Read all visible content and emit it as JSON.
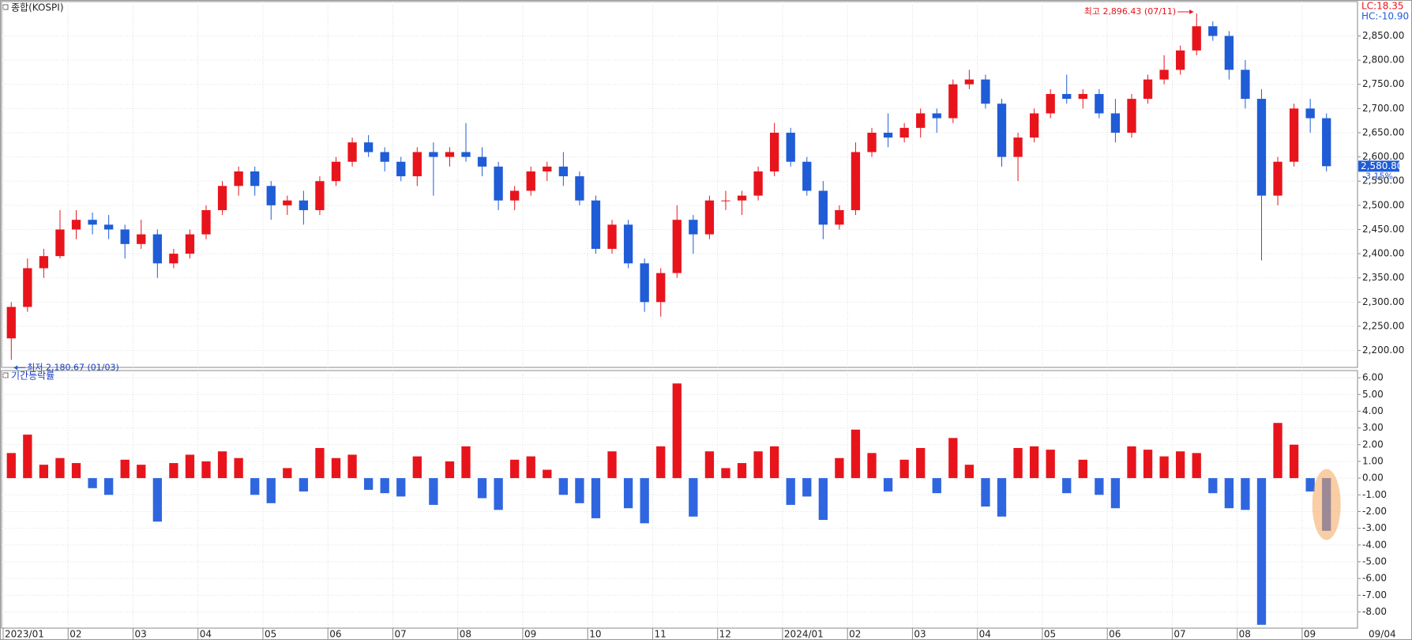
{
  "chart_data": [
    {
      "type": "candlestick",
      "title": "종합(KOSPI)",
      "open": [
        2225,
        2290,
        2370,
        2395,
        2450,
        2470,
        2460,
        2450,
        2420,
        2440,
        2380,
        2400,
        2440,
        2490,
        2540,
        2570,
        2540,
        2500,
        2510,
        2490,
        2550,
        2590,
        2630,
        2610,
        2590,
        2560,
        2610,
        2600,
        2610,
        2600,
        2580,
        2510,
        2530,
        2570,
        2580,
        2560,
        2510,
        2410,
        2460,
        2380,
        2300,
        2360,
        2470,
        2440,
        2510,
        2510,
        2520,
        2570,
        2650,
        2590,
        2530,
        2460,
        2490,
        2610,
        2650,
        2640,
        2660,
        2690,
        2680,
        2750,
        2760,
        2710,
        2600,
        2640,
        2690,
        2730,
        2720,
        2730,
        2690,
        2650,
        2720,
        2760,
        2780,
        2820,
        2870,
        2850,
        2780,
        2720,
        2520,
        2590,
        2700,
        2680
      ],
      "high": [
        2300,
        2390,
        2410,
        2490,
        2490,
        2485,
        2480,
        2460,
        2470,
        2450,
        2410,
        2450,
        2500,
        2550,
        2580,
        2580,
        2550,
        2520,
        2530,
        2560,
        2600,
        2640,
        2645,
        2620,
        2600,
        2620,
        2630,
        2620,
        2670,
        2620,
        2590,
        2540,
        2580,
        2590,
        2610,
        2570,
        2520,
        2470,
        2470,
        2390,
        2370,
        2500,
        2480,
        2520,
        2530,
        2530,
        2580,
        2670,
        2660,
        2600,
        2550,
        2500,
        2630,
        2660,
        2690,
        2670,
        2700,
        2700,
        2760,
        2780,
        2770,
        2720,
        2650,
        2700,
        2740,
        2770,
        2740,
        2740,
        2720,
        2730,
        2770,
        2810,
        2830,
        2896.43,
        2880,
        2860,
        2800,
        2740,
        2600,
        2710,
        2720,
        2690
      ],
      "low": [
        2180.67,
        2280,
        2350,
        2390,
        2430,
        2440,
        2430,
        2390,
        2410,
        2350,
        2370,
        2390,
        2430,
        2480,
        2520,
        2520,
        2470,
        2480,
        2460,
        2480,
        2540,
        2580,
        2600,
        2570,
        2550,
        2540,
        2520,
        2580,
        2590,
        2560,
        2490,
        2490,
        2520,
        2550,
        2540,
        2500,
        2400,
        2400,
        2370,
        2280,
        2270,
        2350,
        2400,
        2430,
        2490,
        2480,
        2510,
        2560,
        2580,
        2520,
        2430,
        2450,
        2480,
        2600,
        2620,
        2630,
        2640,
        2650,
        2670,
        2740,
        2700,
        2580,
        2550,
        2630,
        2680,
        2710,
        2700,
        2680,
        2630,
        2640,
        2710,
        2750,
        2770,
        2810,
        2840,
        2760,
        2700,
        2386,
        2500,
        2580,
        2650,
        2570
      ],
      "close": [
        2290,
        2370,
        2395,
        2450,
        2470,
        2460,
        2450,
        2420,
        2440,
        2380,
        2400,
        2440,
        2490,
        2540,
        2570,
        2540,
        2500,
        2510,
        2490,
        2550,
        2590,
        2630,
        2610,
        2590,
        2560,
        2610,
        2600,
        2610,
        2600,
        2580,
        2510,
        2530,
        2570,
        2580,
        2560,
        2510,
        2410,
        2460,
        2380,
        2300,
        2360,
        2470,
        2440,
        2510,
        2510,
        2520,
        2570,
        2650,
        2590,
        2530,
        2460,
        2490,
        2610,
        2650,
        2640,
        2660,
        2690,
        2680,
        2750,
        2760,
        2710,
        2600,
        2640,
        2690,
        2730,
        2720,
        2730,
        2690,
        2650,
        2720,
        2760,
        2780,
        2820,
        2870,
        2850,
        2780,
        2720,
        2520,
        2590,
        2700,
        2680,
        2580.8
      ],
      "up_color": "#e8141c",
      "down_color": "#1f5cd6",
      "ylim": [
        2165,
        2921
      ],
      "yticks": [
        {
          "value": 2200,
          "label": "2,200.00"
        },
        {
          "value": 2250,
          "label": "2,250.00"
        },
        {
          "value": 2300,
          "label": "2,300.00"
        },
        {
          "value": 2350,
          "label": "2,350.00"
        },
        {
          "value": 2400,
          "label": "2,400.00"
        },
        {
          "value": 2450,
          "label": "2,450.00"
        },
        {
          "value": 2500,
          "label": "2,500.00"
        },
        {
          "value": 2550,
          "label": "2,550.00"
        },
        {
          "value": 2600,
          "label": "2,600.00"
        },
        {
          "value": 2650,
          "label": "2,650.00"
        },
        {
          "value": 2700,
          "label": "2,700.00"
        },
        {
          "value": 2750,
          "label": "2,750.00"
        },
        {
          "value": 2800,
          "label": "2,800.00"
        },
        {
          "value": 2850,
          "label": "2,850.00"
        }
      ],
      "high_annotation": "최고 2,896.43 (07/11)",
      "low_annotation": "최저 2,180.67 (01/03)",
      "lc_label": "LC:18.35",
      "hc_label": "HC:-10.90",
      "last_price": {
        "value": 2580.8,
        "label": "2,580.80"
      },
      "last_change_label": "-3.15%",
      "grid": true
    },
    {
      "type": "bar",
      "title": "기간등락률",
      "categories": [
        "2023/01",
        null,
        null,
        null,
        "02",
        null,
        null,
        null,
        "03",
        null,
        null,
        null,
        "04",
        null,
        null,
        null,
        "05",
        null,
        null,
        null,
        "06",
        null,
        null,
        null,
        "07",
        null,
        null,
        null,
        "08",
        null,
        null,
        null,
        "09",
        null,
        null,
        null,
        "10",
        null,
        null,
        null,
        "11",
        null,
        null,
        null,
        "12",
        null,
        null,
        null,
        "2024/01",
        null,
        null,
        null,
        "02",
        null,
        null,
        null,
        "03",
        null,
        null,
        null,
        "04",
        null,
        null,
        null,
        "05",
        null,
        null,
        null,
        "06",
        null,
        null,
        null,
        "07",
        null,
        null,
        null,
        "08",
        null,
        null,
        null,
        "09",
        null
      ],
      "end_label": "09/04",
      "values": [
        1.5,
        2.6,
        0.8,
        1.2,
        0.9,
        -0.6,
        -1.0,
        1.1,
        0.8,
        -2.6,
        0.9,
        1.4,
        1.0,
        1.6,
        1.2,
        -1.0,
        -1.5,
        0.6,
        -0.8,
        1.8,
        1.2,
        1.4,
        -0.7,
        -0.9,
        -1.1,
        1.3,
        -1.6,
        1.0,
        1.9,
        -1.2,
        -1.9,
        1.1,
        1.3,
        0.5,
        -1.0,
        -1.5,
        -2.4,
        1.6,
        -1.8,
        -2.7,
        1.9,
        5.66,
        -2.3,
        1.6,
        0.6,
        0.9,
        1.6,
        1.9,
        -1.6,
        -1.1,
        -2.5,
        1.2,
        2.9,
        1.5,
        -0.8,
        1.1,
        1.8,
        -0.9,
        2.4,
        0.8,
        -1.7,
        -2.3,
        1.8,
        1.9,
        1.7,
        -0.9,
        1.1,
        -1.0,
        -1.8,
        1.9,
        1.7,
        1.3,
        1.6,
        1.5,
        -0.9,
        -1.8,
        -1.9,
        -8.77,
        3.3,
        2.0,
        -0.8,
        -3.15
      ],
      "up_color": "#e8141c",
      "down_color": "#2f66e0",
      "ylim": [
        -8.97,
        6.43
      ],
      "yticks": [
        {
          "value": 6,
          "label": "6.00"
        },
        {
          "value": 5,
          "label": "5.00"
        },
        {
          "value": 4,
          "label": "4.00"
        },
        {
          "value": 3,
          "label": "3.00"
        },
        {
          "value": 2,
          "label": "2.00"
        },
        {
          "value": 1,
          "label": "1.00"
        },
        {
          "value": 0,
          "label": "0.00"
        },
        {
          "value": -1,
          "label": "-1.00"
        },
        {
          "value": -2,
          "label": "-2.00"
        },
        {
          "value": -3,
          "label": "-3.00"
        },
        {
          "value": -4,
          "label": "-4.00"
        },
        {
          "value": -5,
          "label": "-5.00"
        },
        {
          "value": -6,
          "label": "-6.00"
        },
        {
          "value": -7,
          "label": "-7.00"
        },
        {
          "value": -8,
          "label": "-8.00"
        }
      ],
      "grid": true
    }
  ]
}
